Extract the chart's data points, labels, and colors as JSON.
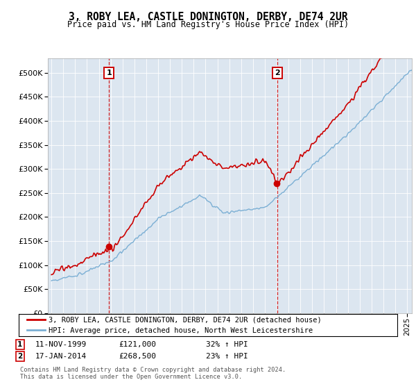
{
  "title": "3, ROBY LEA, CASTLE DONINGTON, DERBY, DE74 2UR",
  "subtitle": "Price paid vs. HM Land Registry's House Price Index (HPI)",
  "plot_bg_color": "#dce6f0",
  "legend_line1": "3, ROBY LEA, CASTLE DONINGTON, DERBY, DE74 2UR (detached house)",
  "legend_line2": "HPI: Average price, detached house, North West Leicestershire",
  "footnote": "Contains HM Land Registry data © Crown copyright and database right 2024.\nThis data is licensed under the Open Government Licence v3.0.",
  "purchase1_date": "11-NOV-1999",
  "purchase1_price": 121000,
  "purchase1_label": "32% ↑ HPI",
  "purchase2_date": "17-JAN-2014",
  "purchase2_price": 268500,
  "purchase2_label": "23% ↑ HPI",
  "purchase1_year": 1999.86,
  "purchase2_year": 2014.04,
  "ylim": [
    0,
    530000
  ],
  "yticks": [
    0,
    50000,
    100000,
    150000,
    200000,
    250000,
    300000,
    350000,
    400000,
    450000,
    500000
  ],
  "xlim_min": 1994.7,
  "xlim_max": 2025.4,
  "red_color": "#cc0000",
  "blue_color": "#7bafd4",
  "vline_color": "#cc0000"
}
